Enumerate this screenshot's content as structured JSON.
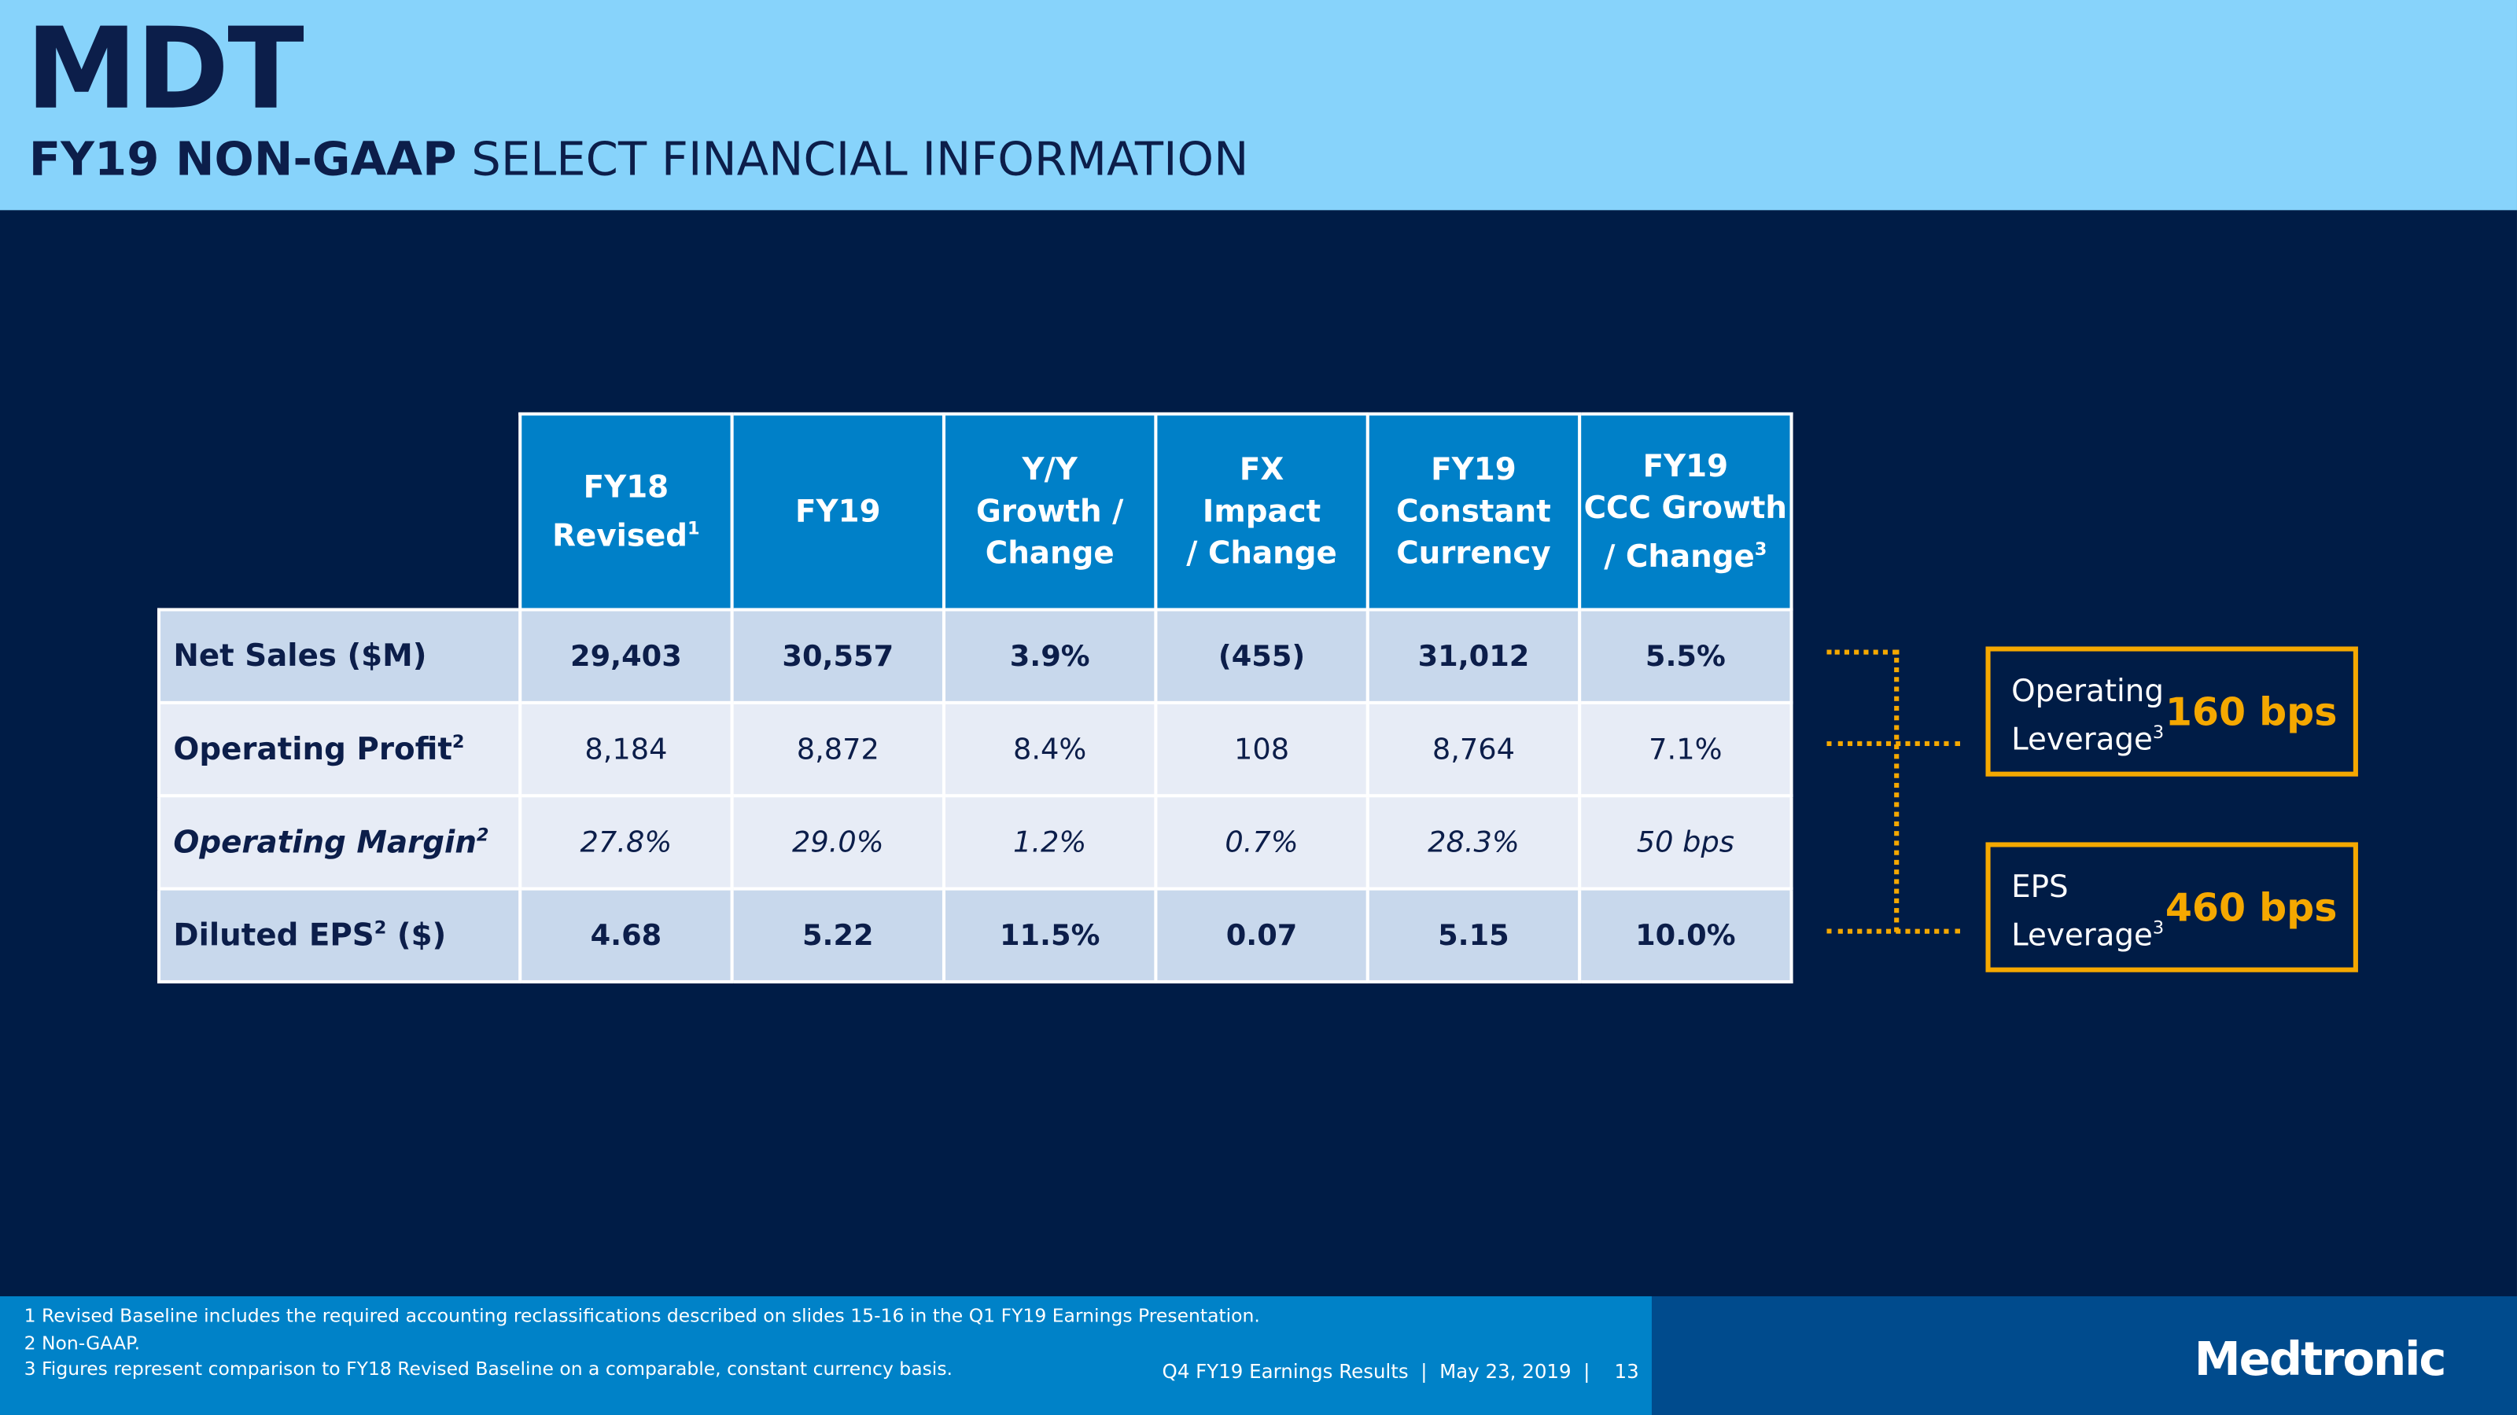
{
  "header": {
    "ticker": "MDT",
    "subtitle_bold": "FY19 NON-GAAP",
    "subtitle_rest": "SELECT FINANCIAL INFORMATION"
  },
  "table": {
    "columns": [
      {
        "lines": [
          "FY18",
          "Revised"
        ],
        "sup": "1"
      },
      {
        "lines": [
          "FY19"
        ]
      },
      {
        "lines": [
          "Y/Y",
          "Growth /",
          "Change"
        ]
      },
      {
        "lines": [
          "FX",
          "Impact",
          "/ Change"
        ]
      },
      {
        "lines": [
          "FY19",
          "Constant",
          "Currency"
        ]
      },
      {
        "lines": [
          "FY19",
          "CCC Growth",
          "/ Change"
        ],
        "sup": "3"
      }
    ],
    "rows": [
      {
        "label": "Net Sales ($M)",
        "cells": [
          "29,403",
          "30,557",
          "3.9%",
          "(455)",
          "31,012",
          "5.5%"
        ]
      },
      {
        "label": "Operating Profit",
        "sup": "2",
        "cells": [
          "8,184",
          "8,872",
          "8.4%",
          "108",
          "8,764",
          "7.1%"
        ]
      },
      {
        "label": "Operating Margin",
        "sup": "2",
        "cells": [
          "27.8%",
          "29.0%",
          "1.2%",
          "0.7%",
          "28.3%",
          "50 bps"
        ]
      },
      {
        "label": "Diluted EPS",
        "sup": "2",
        "after": " ($)",
        "cells": [
          "4.68",
          "5.22",
          "11.5%",
          "0.07",
          "5.15",
          "10.0%"
        ]
      }
    ]
  },
  "callouts": [
    {
      "lines": [
        "Operating",
        "Leverage"
      ],
      "sup": "3",
      "value": "160 bps"
    },
    {
      "lines": [
        "EPS",
        "Leverage"
      ],
      "sup": "3",
      "value": "460 bps"
    }
  ],
  "footer": {
    "notes": [
      "1  Revised Baseline includes the required accounting reclassifications described on slides 15-16 in the Q1 FY19 Earnings Presentation.",
      "2  Non-GAAP.",
      "3  Figures represent comparison to FY18 Revised Baseline on a comparable, constant currency basis."
    ],
    "event": "Q4 FY19 Earnings Results",
    "date": "May 23, 2019",
    "page": "13",
    "logo": "Medtronic"
  }
}
